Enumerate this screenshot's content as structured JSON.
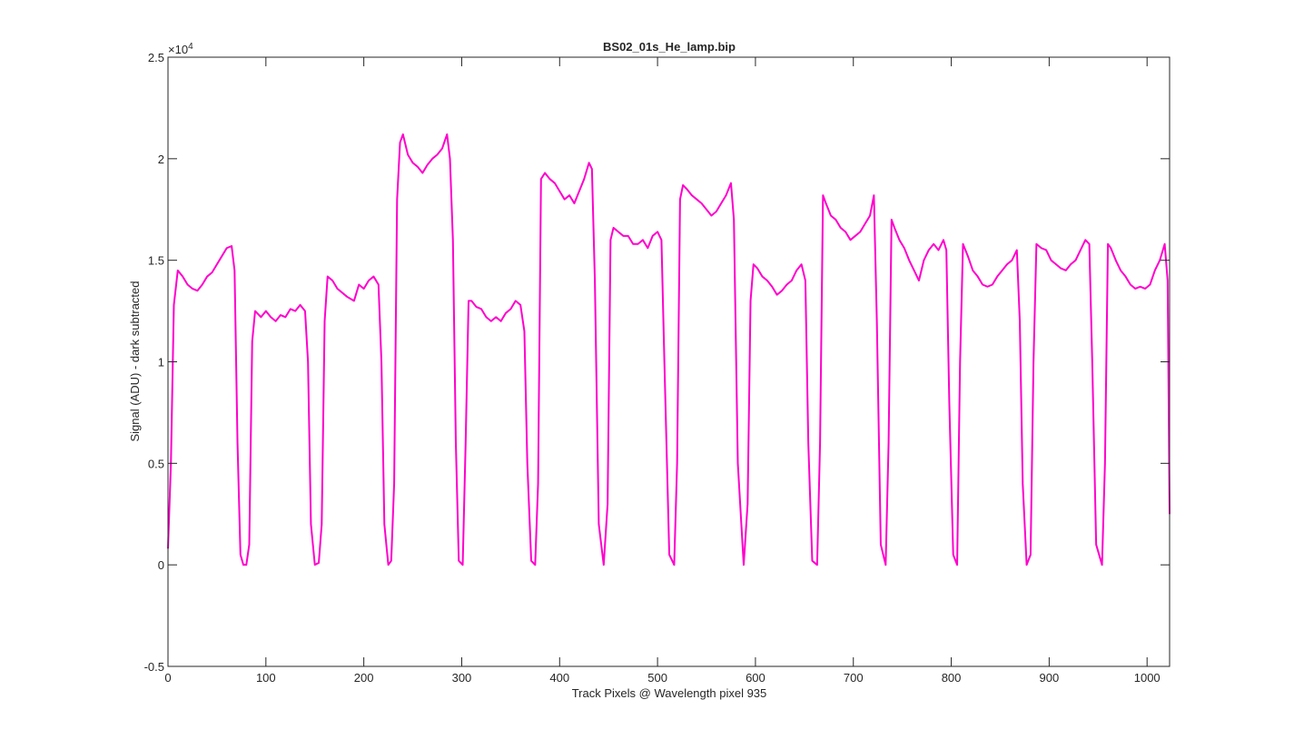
{
  "chart_data": {
    "type": "line",
    "title": "BS02_01s_He_lamp.bip",
    "x_label": "Track Pixels @ Wavelength pixel 935",
    "y_label": "Signal (ADU) - dark subtracted",
    "y_exponent": {
      "base": "×10",
      "power": "4"
    },
    "xlim": [
      0,
      1023
    ],
    "xticks": [
      0,
      100,
      200,
      300,
      400,
      500,
      600,
      700,
      800,
      900,
      1000
    ],
    "ylim": [
      -0.5,
      2.5
    ],
    "yticks": [
      -0.5,
      0,
      0.5,
      1,
      1.5,
      2,
      2.5
    ],
    "grid": false,
    "x": [
      0,
      3,
      6,
      10,
      15,
      20,
      25,
      30,
      35,
      40,
      45,
      50,
      55,
      60,
      65,
      68,
      71,
      74,
      77,
      80,
      83,
      86,
      89,
      95,
      100,
      105,
      110,
      115,
      120,
      125,
      130,
      135,
      140,
      143,
      146,
      150,
      154,
      157,
      160,
      163,
      168,
      173,
      178,
      183,
      190,
      195,
      200,
      205,
      210,
      215,
      218,
      221,
      225,
      228,
      231,
      234,
      237,
      240,
      245,
      250,
      255,
      260,
      265,
      270,
      275,
      280,
      285,
      288,
      291,
      294,
      297,
      301,
      304,
      307,
      310,
      315,
      320,
      325,
      330,
      335,
      340,
      345,
      350,
      355,
      360,
      364,
      367,
      371,
      375,
      378,
      381,
      385,
      390,
      395,
      400,
      405,
      410,
      415,
      420,
      425,
      430,
      433,
      436,
      440,
      445,
      449,
      452,
      455,
      460,
      465,
      470,
      475,
      480,
      485,
      490,
      495,
      500,
      504,
      507,
      512,
      517,
      520,
      523,
      526,
      530,
      535,
      540,
      545,
      550,
      555,
      560,
      565,
      570,
      575,
      578,
      582,
      588,
      592,
      595,
      598,
      602,
      607,
      612,
      617,
      622,
      627,
      632,
      637,
      642,
      647,
      651,
      654,
      658,
      663,
      666,
      669,
      672,
      677,
      682,
      687,
      692,
      697,
      702,
      707,
      712,
      717,
      721,
      724,
      728,
      733,
      736,
      739,
      742,
      747,
      752,
      757,
      762,
      767,
      772,
      777,
      782,
      787,
      792,
      795,
      798,
      802,
      806,
      809,
      812,
      817,
      822,
      827,
      832,
      837,
      842,
      847,
      852,
      857,
      862,
      867,
      870,
      873,
      877,
      881,
      884,
      887,
      892,
      897,
      902,
      907,
      912,
      917,
      922,
      927,
      932,
      937,
      941,
      944,
      948,
      954,
      957,
      960,
      963,
      968,
      973,
      978,
      983,
      988,
      993,
      998,
      1003,
      1008,
      1013,
      1018,
      1021,
      1023
    ],
    "series": [
      {
        "color": "#ff00cc",
        "values": [
          0.08,
          0.5,
          1.28,
          1.45,
          1.42,
          1.38,
          1.36,
          1.35,
          1.38,
          1.42,
          1.44,
          1.48,
          1.52,
          1.56,
          1.57,
          1.45,
          0.6,
          0.05,
          0,
          0,
          0.1,
          1.1,
          1.25,
          1.22,
          1.25,
          1.22,
          1.2,
          1.23,
          1.22,
          1.26,
          1.25,
          1.28,
          1.25,
          1.0,
          0.2,
          0,
          0.01,
          0.2,
          1.2,
          1.42,
          1.4,
          1.36,
          1.34,
          1.32,
          1.3,
          1.38,
          1.36,
          1.4,
          1.42,
          1.38,
          1.0,
          0.2,
          0,
          0.02,
          0.4,
          1.8,
          2.08,
          2.12,
          2.02,
          1.98,
          1.96,
          1.93,
          1.97,
          2.0,
          2.02,
          2.05,
          2.12,
          2.0,
          1.6,
          0.6,
          0.02,
          0,
          0.6,
          1.3,
          1.3,
          1.27,
          1.26,
          1.22,
          1.2,
          1.22,
          1.2,
          1.24,
          1.26,
          1.3,
          1.28,
          1.15,
          0.5,
          0.02,
          0,
          0.4,
          1.9,
          1.93,
          1.9,
          1.88,
          1.84,
          1.8,
          1.82,
          1.78,
          1.84,
          1.9,
          1.98,
          1.95,
          1.4,
          0.2,
          0,
          0.3,
          1.6,
          1.66,
          1.64,
          1.62,
          1.62,
          1.58,
          1.58,
          1.6,
          1.56,
          1.62,
          1.64,
          1.6,
          1.0,
          0.05,
          0,
          0.5,
          1.8,
          1.87,
          1.85,
          1.82,
          1.8,
          1.78,
          1.75,
          1.72,
          1.74,
          1.78,
          1.82,
          1.88,
          1.7,
          0.5,
          0,
          0.3,
          1.3,
          1.48,
          1.46,
          1.42,
          1.4,
          1.37,
          1.33,
          1.35,
          1.38,
          1.4,
          1.45,
          1.48,
          1.4,
          0.6,
          0.02,
          0,
          0.6,
          1.82,
          1.78,
          1.72,
          1.7,
          1.66,
          1.64,
          1.6,
          1.62,
          1.64,
          1.68,
          1.72,
          1.82,
          1.2,
          0.1,
          0,
          0.6,
          1.7,
          1.66,
          1.6,
          1.56,
          1.5,
          1.45,
          1.4,
          1.5,
          1.55,
          1.58,
          1.55,
          1.6,
          1.55,
          0.8,
          0.05,
          0,
          1.0,
          1.58,
          1.52,
          1.45,
          1.42,
          1.38,
          1.37,
          1.38,
          1.42,
          1.45,
          1.48,
          1.5,
          1.55,
          1.2,
          0.4,
          0,
          0.05,
          1.0,
          1.58,
          1.56,
          1.55,
          1.5,
          1.48,
          1.46,
          1.45,
          1.48,
          1.5,
          1.55,
          1.6,
          1.58,
          1.0,
          0.1,
          0,
          0.5,
          1.58,
          1.56,
          1.5,
          1.45,
          1.42,
          1.38,
          1.36,
          1.37,
          1.36,
          1.38,
          1.45,
          1.5,
          1.58,
          1.4,
          0.25
        ]
      }
    ]
  }
}
